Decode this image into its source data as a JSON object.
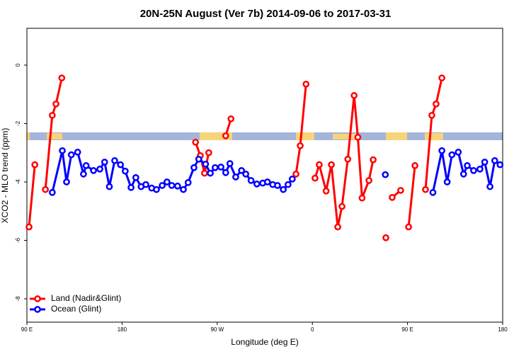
{
  "chart_data": {
    "type": "line",
    "title": "20N-25N August (Ver 7b)   2014-09-06 to 2017-03-31",
    "xlabel": "Longitude (deg E)",
    "ylabel": "XCO2 - MLO trend (ppm)",
    "xlim": [
      90,
      540
    ],
    "ylim": [
      -8.8,
      1.26
    ],
    "xticks": [
      {
        "value": 90,
        "label": "90 E"
      },
      180,
      {
        "value": 270,
        "label": "90 W"
      },
      {
        "value": 360,
        "label": "0"
      },
      {
        "value": 450,
        "label": "90 E"
      },
      {
        "value": 540,
        "label": "180"
      }
    ],
    "yticks": [
      0,
      -2,
      -4,
      -6,
      -8
    ],
    "legend": "bottom-left",
    "series": [
      {
        "name": "Land (Nadir&Glint)",
        "color": "#ff0000",
        "x": [
          92,
          97.5,
          null,
          107.5,
          114,
          117.5,
          123,
          null,
          249.5,
          254,
          258,
          262,
          null,
          278,
          283,
          null,
          344.5,
          348.5,
          354,
          null,
          362.5,
          366.5,
          373,
          378,
          384,
          388,
          393.5,
          399.5,
          403,
          407,
          413.5,
          417.5,
          null,
          429.5,
          null,
          435.5,
          443.5,
          null,
          451,
          457,
          null,
          467,
          473,
          477,
          482.5
        ],
        "values": [
          -5.54,
          -3.41,
          null,
          -4.26,
          -1.72,
          -1.33,
          -0.44,
          null,
          -2.64,
          -3.1,
          -3.7,
          -3.0,
          null,
          -2.42,
          -1.84,
          null,
          -3.73,
          -2.76,
          -0.65,
          null,
          -3.87,
          -3.41,
          -4.31,
          -3.41,
          -5.54,
          -4.84,
          -3.22,
          -1.04,
          -2.47,
          -4.55,
          -3.95,
          -3.24,
          null,
          -5.91,
          null,
          -4.53,
          -4.29,
          null,
          -5.54,
          -3.44,
          null,
          -4.26,
          -1.72,
          -1.33,
          -0.44
        ]
      },
      {
        "name": "Ocean (Glint)",
        "color": "#0000ff",
        "x": [
          114,
          123.5,
          127.5,
          132,
          138,
          143.5,
          146,
          153,
          159,
          163.5,
          168,
          173,
          178.5,
          183,
          188.5,
          193,
          198,
          202.5,
          208,
          212.5,
          218,
          222.5,
          227,
          232.5,
          238,
          242.5,
          248,
          252.5,
          259,
          263.5,
          268,
          273.5,
          278,
          282,
          287.5,
          293,
          297,
          302,
          307.5,
          313,
          317.5,
          322.5,
          327,
          332.5,
          337,
          341,
          null,
          429,
          null,
          474,
          482.5,
          487.5,
          492,
          498,
          503,
          506.5,
          512.5,
          518.5,
          523,
          528,
          532.5,
          537.5
        ],
        "values": [
          -4.36,
          -2.93,
          -4.0,
          -3.07,
          -2.98,
          -3.73,
          -3.44,
          -3.61,
          -3.56,
          -3.32,
          -4.16,
          -3.27,
          -3.41,
          -3.63,
          -4.19,
          -3.85,
          -4.16,
          -4.09,
          -4.21,
          -4.26,
          -4.12,
          -4.0,
          -4.12,
          -4.14,
          -4.26,
          -4.02,
          -3.51,
          -3.22,
          -3.39,
          -3.7,
          -3.51,
          -3.49,
          -3.68,
          -3.37,
          -3.83,
          -3.61,
          -3.73,
          -3.95,
          -4.07,
          -4.04,
          -4.0,
          -4.09,
          -4.12,
          -4.26,
          -4.09,
          -3.9,
          null,
          -3.75,
          null,
          -4.36,
          -2.93,
          -4.0,
          -3.07,
          -2.98,
          -3.73,
          -3.44,
          -3.61,
          -3.56,
          -3.32,
          -4.16,
          -3.27,
          -3.41
        ]
      }
    ]
  }
}
